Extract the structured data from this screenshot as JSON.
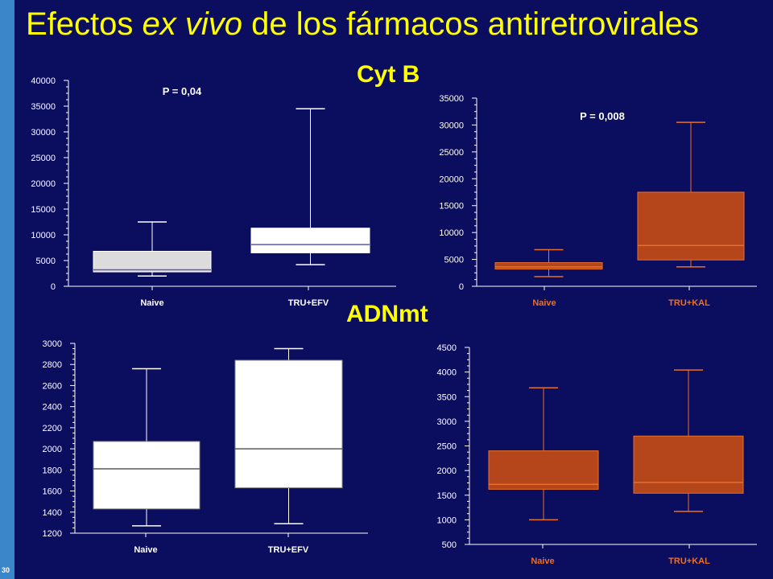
{
  "slide": {
    "number": "30",
    "title_part1": "Efectos ",
    "title_italic": "ex vivo",
    "title_part2": " de los fármacos antiretrovirales",
    "section_cytb": "Cyt B",
    "section_adnmt": "ADNmt"
  },
  "colors": {
    "background": "#0b0d5e",
    "side_bar": "#3a86c8",
    "title": "#ffff00",
    "axis_white": "#ffffff",
    "box_light_gray": "#dcdcdc",
    "box_white": "#ffffff",
    "box_orange": "#b5461c",
    "orange_line": "#e8702a",
    "median_purple": "#5a5ab4"
  },
  "chart_data": [
    {
      "type": "box",
      "id": "cytb-efv",
      "annotation": "P = 0,04",
      "categories": [
        "Naive",
        "TRU+EFV"
      ],
      "yticks": [
        "0",
        "5000",
        "10000",
        "15000",
        "20000",
        "25000",
        "30000",
        "35000",
        "40000"
      ],
      "ylim": [
        0,
        40000
      ],
      "boxes": [
        {
          "category": "Naive",
          "min": 2000,
          "q1": 2800,
          "median": 3200,
          "q3": 6800,
          "max": 12500
        },
        {
          "category": "TRU+EFV",
          "min": 4200,
          "q1": 6500,
          "median": 8100,
          "q3": 11300,
          "max": 34500
        }
      ]
    },
    {
      "type": "box",
      "id": "cytb-kal",
      "annotation": "P = 0,008",
      "categories": [
        "Naive",
        "TRU+KAL"
      ],
      "yticks": [
        "0",
        "5000",
        "10000",
        "15000",
        "20000",
        "25000",
        "30000",
        "35000"
      ],
      "ylim": [
        0,
        35000
      ],
      "boxes": [
        {
          "category": "Naive",
          "min": 1800,
          "q1": 3200,
          "median": 3600,
          "q3": 4400,
          "max": 6800
        },
        {
          "category": "TRU+KAL",
          "min": 3600,
          "q1": 4900,
          "median": 7600,
          "q3": 17500,
          "max": 30500
        }
      ]
    },
    {
      "type": "box",
      "id": "adnmt-efv",
      "annotation": "",
      "categories": [
        "Naive",
        "TRU+EFV"
      ],
      "yticks": [
        "1200",
        "1400",
        "1600",
        "1800",
        "2000",
        "2200",
        "2400",
        "2600",
        "2800",
        "3000"
      ],
      "ylim": [
        1200,
        3000
      ],
      "boxes": [
        {
          "category": "Naive",
          "min": 1270,
          "q1": 1430,
          "median": 1810,
          "q3": 2070,
          "max": 2760
        },
        {
          "category": "TRU+EFV",
          "min": 1290,
          "q1": 1630,
          "median": 2000,
          "q3": 2840,
          "max": 2950
        }
      ]
    },
    {
      "type": "box",
      "id": "adnmt-kal",
      "annotation": "",
      "categories": [
        "Naive",
        "TRU+KAL"
      ],
      "yticks": [
        "500",
        "1000",
        "1500",
        "2000",
        "2500",
        "3000",
        "3500",
        "4000",
        "4500"
      ],
      "ylim": [
        500,
        4500
      ],
      "boxes": [
        {
          "category": "Naive",
          "min": 1000,
          "q1": 1620,
          "median": 1720,
          "q3": 2400,
          "max": 3680
        },
        {
          "category": "TRU+KAL",
          "min": 1170,
          "q1": 1540,
          "median": 1760,
          "q3": 2700,
          "max": 4040
        }
      ]
    }
  ]
}
